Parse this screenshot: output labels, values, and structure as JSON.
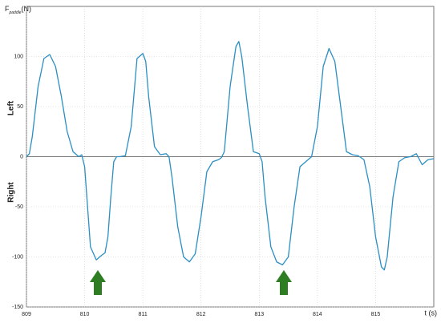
{
  "chart_data": {
    "type": "line",
    "ylabel": {
      "symbol": "F",
      "subscript": "paddle",
      "unit": "(N)"
    },
    "xlabel": "t (s)",
    "annotations": [
      "Left",
      "Right"
    ],
    "x": [
      809.0,
      809.05,
      809.1,
      809.2,
      809.3,
      809.4,
      809.5,
      809.6,
      809.7,
      809.8,
      809.9,
      809.95,
      810.0,
      810.05,
      810.1,
      810.2,
      810.3,
      810.35,
      810.4,
      810.45,
      810.5,
      810.55,
      810.6,
      810.7,
      810.8,
      810.9,
      811.0,
      811.05,
      811.1,
      811.2,
      811.3,
      811.4,
      811.45,
      811.5,
      811.6,
      811.7,
      811.8,
      811.9,
      812.0,
      812.1,
      812.2,
      812.3,
      812.35,
      812.4,
      812.5,
      812.6,
      812.65,
      812.7,
      812.8,
      812.9,
      813.0,
      813.05,
      813.1,
      813.2,
      813.3,
      813.4,
      813.5,
      813.6,
      813.7,
      813.8,
      813.9,
      814.0,
      814.1,
      814.2,
      814.3,
      814.4,
      814.5,
      814.6,
      814.7,
      814.8,
      814.9,
      815.0,
      815.1,
      815.15,
      815.2,
      815.3,
      815.4,
      815.5,
      815.6,
      815.7,
      815.8,
      815.9,
      816.0
    ],
    "values": [
      0,
      3,
      20,
      70,
      98,
      102,
      90,
      60,
      25,
      5,
      0,
      2,
      -10,
      -50,
      -90,
      -103,
      -98,
      -96,
      -80,
      -40,
      -5,
      0,
      0,
      1,
      30,
      98,
      103,
      95,
      60,
      10,
      2,
      3,
      0,
      -20,
      -70,
      -100,
      -105,
      -97,
      -60,
      -15,
      -5,
      -3,
      -1,
      5,
      70,
      110,
      115,
      100,
      50,
      5,
      3,
      -5,
      -40,
      -90,
      -105,
      -108,
      -100,
      -50,
      -10,
      -5,
      0,
      30,
      90,
      108,
      95,
      50,
      5,
      2,
      1,
      -3,
      -30,
      -80,
      -110,
      -113,
      -100,
      -40,
      -5,
      -1,
      0,
      3,
      -8,
      -3,
      -2
    ],
    "color": "#2a8fc4",
    "xlim": [
      809,
      816
    ],
    "xticks": [
      809,
      810,
      811,
      812,
      813,
      814,
      815
    ],
    "ylim": [
      -150,
      150
    ],
    "yticks": [
      -150,
      -100,
      -50,
      0,
      50,
      100
    ],
    "grid": true
  }
}
